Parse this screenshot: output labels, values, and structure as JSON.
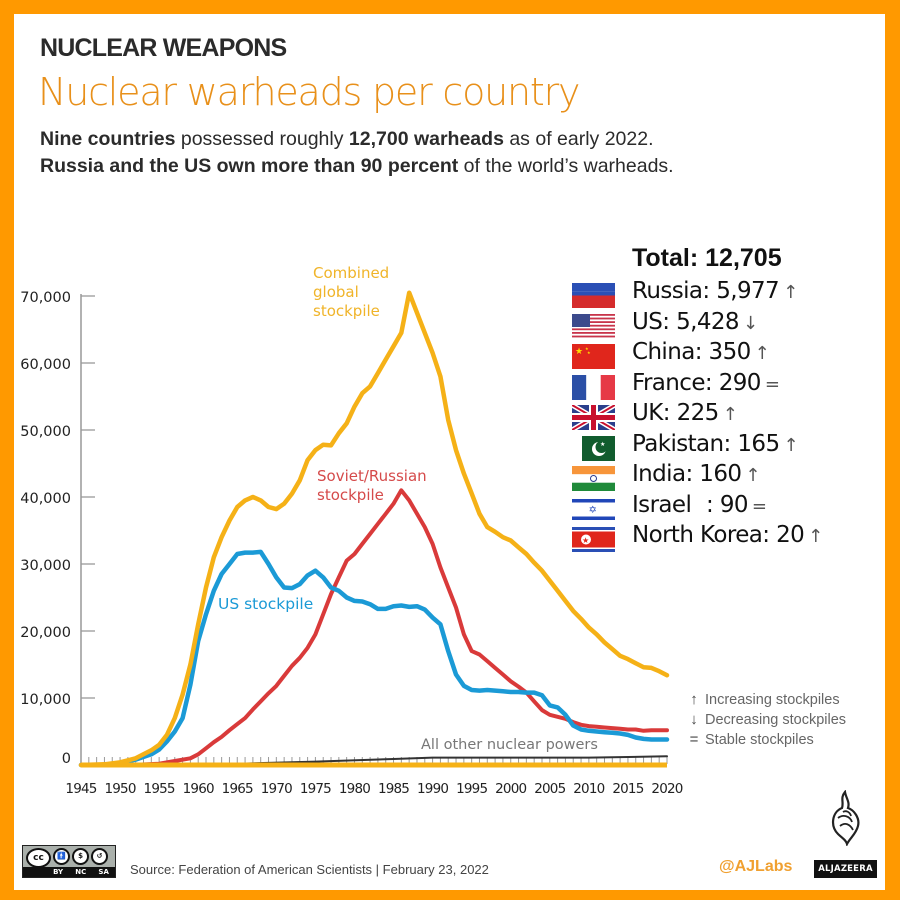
{
  "header": {
    "kicker": "NUCLEAR WEAPONS",
    "title": "Nuclear warheads per country",
    "subtitle_line1": {
      "b1": "Nine countries",
      "t1": " possessed roughly ",
      "b2": "12,700 warheads",
      "t2": " as of early 2022."
    },
    "subtitle_line2": {
      "b1": "Russia and the US own more than 90 percent",
      "t1": " of the world’s warheads."
    }
  },
  "legend": {
    "total_label": "Total: 12,705",
    "countries": [
      {
        "name": "Russia",
        "label": "Russia: 5,977",
        "trend": "increasing",
        "trend_symbol": "↑",
        "flag": "russia-flag"
      },
      {
        "name": "US",
        "label": "US: 5,428",
        "trend": "decreasing",
        "trend_symbol": "↓",
        "flag": "us-flag"
      },
      {
        "name": "China",
        "label": "China: 350",
        "trend": "increasing",
        "trend_symbol": "↑",
        "flag": "china-flag"
      },
      {
        "name": "France",
        "label": "France: 290",
        "trend": "stable",
        "trend_symbol": "=",
        "flag": "france-flag"
      },
      {
        "name": "UK",
        "label": "UK: 225",
        "trend": "increasing",
        "trend_symbol": "↑",
        "flag": "uk-flag"
      },
      {
        "name": "Pakistan",
        "label": "Pakistan: 165",
        "trend": "increasing",
        "trend_symbol": "↑",
        "flag": "pakistan-flag"
      },
      {
        "name": "India",
        "label": "India: 160",
        "trend": "increasing",
        "trend_symbol": "↑",
        "flag": "india-flag"
      },
      {
        "name": "Israel",
        "label": "Israel   : 90",
        "trend": "stable",
        "trend_symbol": "=",
        "flag": "israel-flag"
      },
      {
        "name": "North Korea",
        "label": "North Korea: 20",
        "trend": "increasing",
        "trend_symbol": "↑",
        "flag": "north-korea-flag"
      }
    ]
  },
  "trend_key": [
    {
      "symbol": "↑",
      "label": "Increasing stockpiles"
    },
    {
      "symbol": "↓",
      "label": "Decreasing stockpiles"
    },
    {
      "symbol": "=",
      "label": "Stable stockpiles"
    }
  ],
  "footer": {
    "source": "Source: Federation of American Scientists | February 23, 2022",
    "handle": "@AJLabs",
    "brand": "ALJAZEERA",
    "license_tags": [
      "BY",
      "NC",
      "SA"
    ],
    "license_icon_label": "cc"
  },
  "colors": {
    "frame": "#ff9900",
    "combined": "#f5b117",
    "us": "#1b9ad6",
    "russia": "#d93a3a",
    "others": "#333333",
    "axis": "#999999",
    "title_orange": "#e8901a"
  },
  "chart_data": {
    "type": "line",
    "title": "Nuclear warheads per country",
    "xlabel": "",
    "ylabel": "",
    "xlim": [
      1945,
      2020
    ],
    "ylim": [
      0,
      70000
    ],
    "x_ticks": [
      1945,
      1950,
      1955,
      1960,
      1965,
      1970,
      1975,
      1980,
      1985,
      1990,
      1995,
      2000,
      2005,
      2010,
      2015,
      2020
    ],
    "y_ticks": [
      0,
      10000,
      20000,
      30000,
      40000,
      50000,
      60000,
      70000
    ],
    "y_tick_labels": [
      "0",
      "10,000",
      "20,000",
      "30,000",
      "40,000",
      "50,000",
      "60,000",
      "70,000"
    ],
    "grid": false,
    "legend_placement": "inline-labels",
    "series": [
      {
        "name": "Combined global stockpile",
        "label_lines": [
          "Combined",
          "global",
          "stockpile"
        ],
        "color_key": "combined",
        "points": [
          [
            1945,
            0
          ],
          [
            1948,
            100
          ],
          [
            1950,
            400
          ],
          [
            1952,
            1000
          ],
          [
            1954,
            2200
          ],
          [
            1955,
            3000
          ],
          [
            1956,
            4500
          ],
          [
            1957,
            7000
          ],
          [
            1958,
            10500
          ],
          [
            1959,
            15000
          ],
          [
            1960,
            21000
          ],
          [
            1961,
            26500
          ],
          [
            1962,
            31000
          ],
          [
            1963,
            34000
          ],
          [
            1964,
            36500
          ],
          [
            1965,
            38500
          ],
          [
            1966,
            39500
          ],
          [
            1967,
            40000
          ],
          [
            1968,
            39500
          ],
          [
            1969,
            38500
          ],
          [
            1970,
            38200
          ],
          [
            1971,
            39000
          ],
          [
            1972,
            40500
          ],
          [
            1973,
            42500
          ],
          [
            1974,
            45500
          ],
          [
            1975,
            47000
          ],
          [
            1976,
            47800
          ],
          [
            1977,
            47700
          ],
          [
            1978,
            49500
          ],
          [
            1979,
            51000
          ],
          [
            1980,
            53500
          ],
          [
            1981,
            55500
          ],
          [
            1982,
            56500
          ],
          [
            1983,
            58500
          ],
          [
            1984,
            60500
          ],
          [
            1985,
            62500
          ],
          [
            1986,
            64500
          ],
          [
            1987,
            70500
          ],
          [
            1988,
            67500
          ],
          [
            1989,
            64500
          ],
          [
            1990,
            61500
          ],
          [
            1991,
            58000
          ],
          [
            1992,
            51500
          ],
          [
            1993,
            47000
          ],
          [
            1994,
            43500
          ],
          [
            1995,
            40500
          ],
          [
            1996,
            37500
          ],
          [
            1997,
            35500
          ],
          [
            1998,
            34800
          ],
          [
            1999,
            34000
          ],
          [
            2000,
            33500
          ],
          [
            2001,
            32500
          ],
          [
            2002,
            31500
          ],
          [
            2003,
            30200
          ],
          [
            2004,
            29000
          ],
          [
            2005,
            27500
          ],
          [
            2006,
            26000
          ],
          [
            2007,
            24500
          ],
          [
            2008,
            23000
          ],
          [
            2009,
            21800
          ],
          [
            2010,
            20500
          ],
          [
            2011,
            19500
          ],
          [
            2012,
            18300
          ],
          [
            2013,
            17300
          ],
          [
            2014,
            16300
          ],
          [
            2015,
            15800
          ],
          [
            2016,
            15200
          ],
          [
            2017,
            14600
          ],
          [
            2018,
            14500
          ],
          [
            2019,
            14000
          ],
          [
            2020,
            13400
          ]
        ]
      },
      {
        "name": "US stockpile",
        "label_lines": [
          "US stockpile"
        ],
        "color_key": "us",
        "points": [
          [
            1945,
            0
          ],
          [
            1948,
            50
          ],
          [
            1950,
            300
          ],
          [
            1952,
            800
          ],
          [
            1954,
            1600
          ],
          [
            1955,
            2300
          ],
          [
            1956,
            3500
          ],
          [
            1957,
            5000
          ],
          [
            1958,
            7000
          ],
          [
            1959,
            12000
          ],
          [
            1960,
            18500
          ],
          [
            1961,
            22500
          ],
          [
            1962,
            26000
          ],
          [
            1963,
            28500
          ],
          [
            1964,
            30000
          ],
          [
            1965,
            31500
          ],
          [
            1966,
            31700
          ],
          [
            1967,
            31700
          ],
          [
            1968,
            31800
          ],
          [
            1969,
            30000
          ],
          [
            1970,
            28000
          ],
          [
            1971,
            26500
          ],
          [
            1972,
            26400
          ],
          [
            1973,
            27000
          ],
          [
            1974,
            28300
          ],
          [
            1975,
            29000
          ],
          [
            1976,
            28000
          ],
          [
            1977,
            26500
          ],
          [
            1978,
            26000
          ],
          [
            1979,
            25000
          ],
          [
            1980,
            24500
          ],
          [
            1981,
            24400
          ],
          [
            1982,
            24000
          ],
          [
            1983,
            23300
          ],
          [
            1984,
            23300
          ],
          [
            1985,
            23700
          ],
          [
            1986,
            23800
          ],
          [
            1987,
            23600
          ],
          [
            1988,
            23700
          ],
          [
            1989,
            23200
          ],
          [
            1990,
            22000
          ],
          [
            1991,
            21000
          ],
          [
            1992,
            17000
          ],
          [
            1993,
            13500
          ],
          [
            1994,
            11800
          ],
          [
            1995,
            11200
          ],
          [
            1996,
            11100
          ],
          [
            1997,
            11200
          ],
          [
            1998,
            11100
          ],
          [
            1999,
            11000
          ],
          [
            2000,
            10900
          ],
          [
            2001,
            10900
          ],
          [
            2002,
            10800
          ],
          [
            2003,
            10800
          ],
          [
            2004,
            10400
          ],
          [
            2005,
            8900
          ],
          [
            2006,
            8600
          ],
          [
            2007,
            7500
          ],
          [
            2008,
            5900
          ],
          [
            2009,
            5300
          ],
          [
            2010,
            5100
          ],
          [
            2011,
            5000
          ],
          [
            2012,
            4900
          ],
          [
            2013,
            4800
          ],
          [
            2014,
            4700
          ],
          [
            2015,
            4500
          ],
          [
            2016,
            4100
          ],
          [
            2017,
            3900
          ],
          [
            2018,
            3800
          ],
          [
            2019,
            3800
          ],
          [
            2020,
            3800
          ]
        ]
      },
      {
        "name": "Soviet/Russian stockpile",
        "label_lines": [
          "Soviet/Russian",
          "stockpile"
        ],
        "color_key": "russia",
        "points": [
          [
            1945,
            0
          ],
          [
            1949,
            0
          ],
          [
            1952,
            50
          ],
          [
            1955,
            200
          ],
          [
            1957,
            600
          ],
          [
            1959,
            1000
          ],
          [
            1960,
            1600
          ],
          [
            1961,
            2500
          ],
          [
            1962,
            3400
          ],
          [
            1963,
            4200
          ],
          [
            1964,
            5200
          ],
          [
            1965,
            6100
          ],
          [
            1966,
            7000
          ],
          [
            1967,
            8300
          ],
          [
            1968,
            9500
          ],
          [
            1969,
            10700
          ],
          [
            1970,
            11800
          ],
          [
            1971,
            13300
          ],
          [
            1972,
            14800
          ],
          [
            1973,
            16000
          ],
          [
            1974,
            17500
          ],
          [
            1975,
            19500
          ],
          [
            1976,
            22500
          ],
          [
            1977,
            25500
          ],
          [
            1978,
            28000
          ],
          [
            1979,
            30500
          ],
          [
            1980,
            31500
          ],
          [
            1981,
            33000
          ],
          [
            1982,
            34500
          ],
          [
            1983,
            36000
          ],
          [
            1984,
            37500
          ],
          [
            1985,
            39000
          ],
          [
            1986,
            41000
          ],
          [
            1987,
            39500
          ],
          [
            1988,
            37500
          ],
          [
            1989,
            35500
          ],
          [
            1990,
            33000
          ],
          [
            1991,
            29500
          ],
          [
            1992,
            26500
          ],
          [
            1993,
            23500
          ],
          [
            1994,
            19500
          ],
          [
            1995,
            17000
          ],
          [
            1996,
            16500
          ],
          [
            1997,
            15500
          ],
          [
            1998,
            14500
          ],
          [
            1999,
            13500
          ],
          [
            2000,
            12500
          ],
          [
            2001,
            11700
          ],
          [
            2002,
            10800
          ],
          [
            2003,
            9500
          ],
          [
            2004,
            8200
          ],
          [
            2005,
            7500
          ],
          [
            2006,
            7200
          ],
          [
            2007,
            6900
          ],
          [
            2008,
            6400
          ],
          [
            2009,
            6000
          ],
          [
            2010,
            5800
          ],
          [
            2011,
            5700
          ],
          [
            2012,
            5600
          ],
          [
            2013,
            5500
          ],
          [
            2014,
            5400
          ],
          [
            2015,
            5300
          ],
          [
            2016,
            5300
          ],
          [
            2017,
            5100
          ],
          [
            2018,
            5200
          ],
          [
            2019,
            5200
          ],
          [
            2020,
            5200
          ]
        ]
      },
      {
        "name": "All other nuclear powers",
        "label_lines": [
          "All other nuclear powers"
        ],
        "color_key": "others",
        "points": [
          [
            1945,
            0
          ],
          [
            1955,
            0
          ],
          [
            1965,
            200
          ],
          [
            1975,
            500
          ],
          [
            1985,
            900
          ],
          [
            1990,
            1100
          ],
          [
            2000,
            1100
          ],
          [
            2010,
            1100
          ],
          [
            2020,
            1300
          ]
        ]
      }
    ]
  }
}
